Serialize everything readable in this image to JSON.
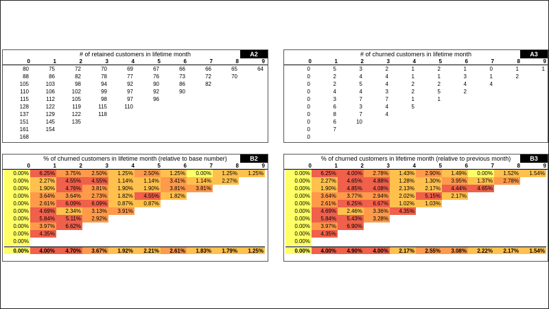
{
  "colors": {
    "yellow": "#ffff66",
    "orange": "#ffc04d",
    "red": "#f0604a",
    "mid": "#ff9a4a"
  },
  "col_headers": [
    "0",
    "1",
    "2",
    "3",
    "4",
    "5",
    "6",
    "7",
    "8",
    "9"
  ],
  "panel_a2": {
    "title": "# of retained customers in lifetime month",
    "tag": "A2",
    "rows": [
      [
        "80",
        "75",
        "72",
        "70",
        "69",
        "67",
        "66",
        "66",
        "65",
        "64"
      ],
      [
        "88",
        "86",
        "82",
        "78",
        "77",
        "76",
        "73",
        "72",
        "70"
      ],
      [
        "105",
        "103",
        "98",
        "94",
        "92",
        "90",
        "86",
        "82"
      ],
      [
        "110",
        "106",
        "102",
        "99",
        "97",
        "92",
        "90"
      ],
      [
        "115",
        "112",
        "105",
        "98",
        "97",
        "96"
      ],
      [
        "128",
        "122",
        "119",
        "115",
        "110"
      ],
      [
        "137",
        "129",
        "122",
        "118"
      ],
      [
        "151",
        "145",
        "135"
      ],
      [
        "161",
        "154"
      ],
      [
        "168"
      ]
    ]
  },
  "panel_a3": {
    "title": "# of churned customers in lifetime month",
    "tag": "A3",
    "rows": [
      [
        "0",
        "5",
        "3",
        "2",
        "1",
        "2",
        "1",
        "0",
        "1",
        "1"
      ],
      [
        "0",
        "2",
        "4",
        "4",
        "1",
        "1",
        "3",
        "1",
        "2"
      ],
      [
        "0",
        "2",
        "5",
        "4",
        "2",
        "2",
        "4",
        "4"
      ],
      [
        "0",
        "4",
        "4",
        "3",
        "2",
        "5",
        "2"
      ],
      [
        "0",
        "3",
        "7",
        "7",
        "1",
        "1"
      ],
      [
        "0",
        "6",
        "3",
        "4",
        "5"
      ],
      [
        "0",
        "8",
        "7",
        "4"
      ],
      [
        "0",
        "6",
        "10"
      ],
      [
        "0",
        "7"
      ],
      [
        "0"
      ]
    ]
  },
  "panel_b2": {
    "title": "% of churned customers in lifetime month (relative to base number)",
    "tag": "B2",
    "rows": [
      [
        "0.00%",
        "6.25%",
        "3.75%",
        "2.50%",
        "1.25%",
        "2.50%",
        "1.25%",
        "0.00%",
        "1.25%",
        "1.25%"
      ],
      [
        "0.00%",
        "2.27%",
        "4.55%",
        "4.55%",
        "1.14%",
        "1.14%",
        "3.41%",
        "1.14%",
        "2.27%"
      ],
      [
        "0.00%",
        "1.90%",
        "4.76%",
        "3.81%",
        "1.90%",
        "1.90%",
        "3.81%",
        "3.81%"
      ],
      [
        "0.00%",
        "3.64%",
        "3.64%",
        "2.73%",
        "1.82%",
        "4.55%",
        "1.82%"
      ],
      [
        "0.00%",
        "2.61%",
        "6.09%",
        "6.09%",
        "0.87%",
        "0.87%"
      ],
      [
        "0.00%",
        "4.69%",
        "2.34%",
        "3.13%",
        "3.91%"
      ],
      [
        "0.00%",
        "5.84%",
        "5.11%",
        "2.92%"
      ],
      [
        "0.00%",
        "3.97%",
        "6.62%"
      ],
      [
        "0.00%",
        "4.35%"
      ],
      [
        "0.00%"
      ]
    ],
    "avg": [
      "0.00%",
      "4.00%",
      "4.70%",
      "3.67%",
      "1.92%",
      "2.21%",
      "2.61%",
      "1.83%",
      "1.79%",
      "1.25%"
    ]
  },
  "panel_b3": {
    "title": "% of churned customers in lifetime month (relative to previous month)",
    "tag": "B3",
    "rows": [
      [
        "0.00%",
        "6.25%",
        "4.00%",
        "2.78%",
        "1.43%",
        "2.90%",
        "1.49%",
        "0.00%",
        "1.52%",
        "1.54%"
      ],
      [
        "0.00%",
        "2.27%",
        "4.65%",
        "4.88%",
        "1.28%",
        "1.30%",
        "3.95%",
        "1.37%",
        "2.78%"
      ],
      [
        "0.00%",
        "1.90%",
        "4.85%",
        "4.08%",
        "2.13%",
        "2.17%",
        "4.44%",
        "4.65%"
      ],
      [
        "0.00%",
        "3.64%",
        "3.77%",
        "2.94%",
        "2.02%",
        "5.15%",
        "2.17%"
      ],
      [
        "0.00%",
        "2.61%",
        "6.25%",
        "6.67%",
        "1.02%",
        "1.03%"
      ],
      [
        "0.00%",
        "4.69%",
        "2.46%",
        "3.36%",
        "4.35%"
      ],
      [
        "0.00%",
        "5.84%",
        "5.43%",
        "3.28%"
      ],
      [
        "0.00%",
        "3.97%",
        "6.90%"
      ],
      [
        "0.00%",
        "4.35%"
      ],
      [
        "0.00%"
      ]
    ],
    "avg": [
      "0.00%",
      "4.00%",
      "4.90%",
      "4.00%",
      "2.17%",
      "2.55%",
      "3.08%",
      "2.22%",
      "2.17%",
      "1.54%"
    ]
  }
}
